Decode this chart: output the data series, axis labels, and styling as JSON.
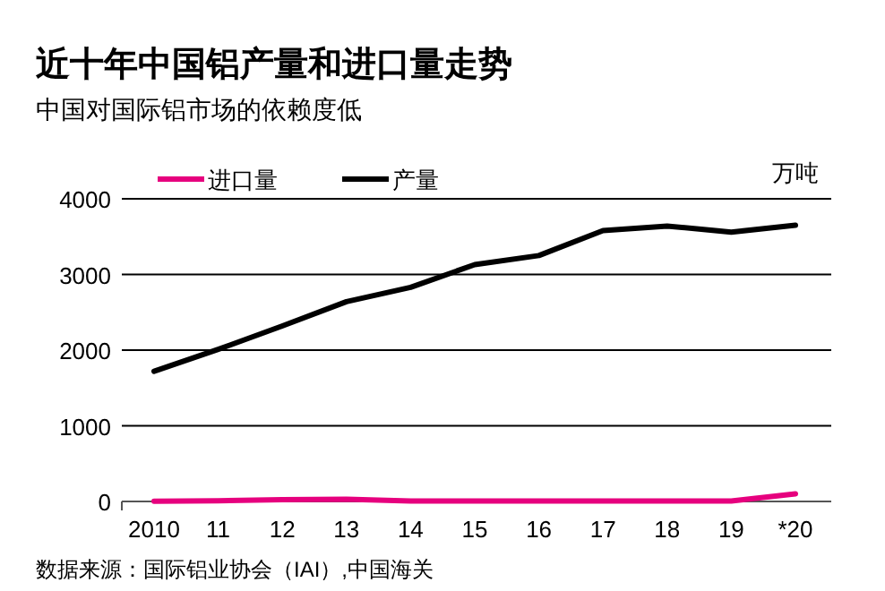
{
  "chart_data": {
    "type": "line",
    "title": "近十年中国铝产量和进口量走势",
    "subtitle": "中国对国际铝市场的依赖度低",
    "ylabel": "万吨",
    "categories": [
      "2010",
      "11",
      "12",
      "13",
      "14",
      "15",
      "16",
      "17",
      "18",
      "19",
      "*20"
    ],
    "series": [
      {
        "name": "进口量",
        "color": "#e6007e",
        "values": [
          2,
          10,
          25,
          30,
          5,
          5,
          5,
          5,
          5,
          5,
          100
        ]
      },
      {
        "name": "产量",
        "color": "#000000",
        "values": [
          1720,
          2010,
          2320,
          2640,
          2830,
          3130,
          3250,
          3580,
          3640,
          3560,
          3650
        ]
      }
    ],
    "ylim": [
      0,
      4000
    ],
    "yticks": [
      0,
      1000,
      2000,
      3000,
      4000
    ],
    "grid": "y",
    "legend": "top left",
    "marker": "none",
    "line_style": "solid",
    "annotations": [
      "数据来源：国际铝业协会（IAI）,中国海关"
    ]
  }
}
